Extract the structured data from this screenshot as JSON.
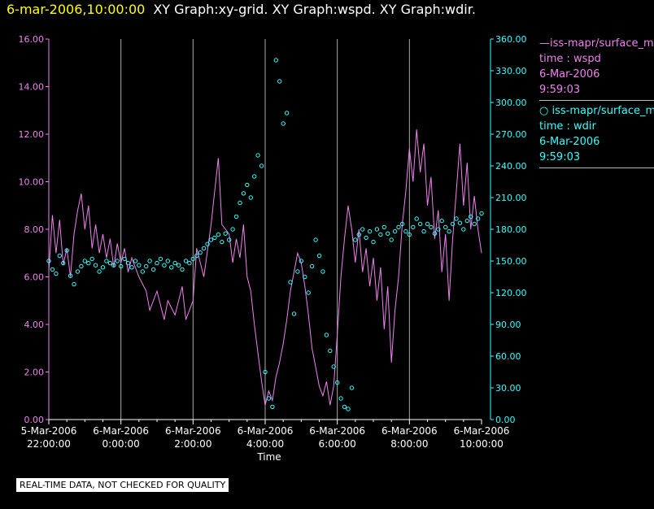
{
  "header": {
    "datetime": "6-mar-2006,10:00:00",
    "title": "XY Graph:xy-grid.  XY Graph:wspd.  XY Graph:wdir."
  },
  "legend": {
    "entries": [
      {
        "line1": "—iss-mapr/surface_m",
        "line2": "time : wspd",
        "line3": "6-Mar-2006",
        "line4": "9:59:03",
        "color": "#ee82ee"
      },
      {
        "line1": "○  iss-mapr/surface_m",
        "line2": "time : wdir",
        "line3": "6-Mar-2006",
        "line4": "9:59:03",
        "color": "#33ffff"
      }
    ]
  },
  "badge": "REAL-TIME DATA, NOT CHECKED FOR QUALITY",
  "chart_data": {
    "type": "line",
    "xlabel": "Time",
    "x_ticks": [
      {
        "l1": "5-Mar-2006",
        "l2": "22:00:00",
        "h": 0
      },
      {
        "l1": "6-Mar-2006",
        "l2": "0:00:00",
        "h": 2
      },
      {
        "l1": "6-Mar-2006",
        "l2": "2:00:00",
        "h": 4
      },
      {
        "l1": "6-Mar-2006",
        "l2": "4:00:00",
        "h": 6
      },
      {
        "l1": "6-Mar-2006",
        "l2": "6:00:00",
        "h": 8
      },
      {
        "l1": "6-Mar-2006",
        "l2": "8:00:00",
        "h": 10
      },
      {
        "l1": "6-Mar-2006",
        "l2": "10:00:00",
        "h": 12
      }
    ],
    "x_range_hours": [
      0,
      12
    ],
    "y_left": {
      "ticks": [
        "0.00",
        "2.00",
        "4.00",
        "6.00",
        "8.00",
        "10.00",
        "12.00",
        "14.00",
        "16.00"
      ],
      "range": [
        0,
        16
      ],
      "color": "#ee82ee"
    },
    "y_right": {
      "ticks": [
        "0.00",
        "30.00",
        "60.00",
        "90.00",
        "120.00",
        "150.00",
        "180.00",
        "210.00",
        "240.00",
        "270.00",
        "300.00",
        "330.00",
        "360.00"
      ],
      "range": [
        0,
        360
      ],
      "color": "#33ffff"
    },
    "vertical_grid": true,
    "series": [
      {
        "kind": "line",
        "color": "#ee82ee",
        "points": [
          [
            0,
            6.2
          ],
          [
            0.1,
            8.6
          ],
          [
            0.2,
            7.0
          ],
          [
            0.3,
            8.4
          ],
          [
            0.4,
            6.5
          ],
          [
            0.5,
            7.2
          ],
          [
            0.6,
            6.0
          ],
          [
            0.7,
            7.8
          ],
          [
            0.8,
            8.8
          ],
          [
            0.9,
            9.5
          ],
          [
            1.0,
            8.0
          ],
          [
            1.1,
            9.0
          ],
          [
            1.2,
            7.2
          ],
          [
            1.3,
            8.2
          ],
          [
            1.4,
            7.0
          ],
          [
            1.5,
            7.8
          ],
          [
            1.6,
            6.8
          ],
          [
            1.7,
            7.6
          ],
          [
            1.8,
            6.4
          ],
          [
            1.9,
            7.4
          ],
          [
            2.0,
            6.6
          ],
          [
            2.1,
            7.2
          ],
          [
            2.2,
            6.2
          ],
          [
            2.3,
            6.8
          ],
          [
            2.5,
            6.0
          ],
          [
            2.7,
            5.4
          ],
          [
            2.8,
            4.6
          ],
          [
            3.0,
            5.4
          ],
          [
            3.2,
            4.2
          ],
          [
            3.3,
            5.0
          ],
          [
            3.5,
            4.4
          ],
          [
            3.7,
            5.6
          ],
          [
            3.8,
            4.2
          ],
          [
            4.0,
            5.0
          ],
          [
            4.1,
            7.2
          ],
          [
            4.3,
            6.0
          ],
          [
            4.5,
            8.2
          ],
          [
            4.6,
            9.6
          ],
          [
            4.7,
            11.0
          ],
          [
            4.8,
            8.2
          ],
          [
            5.0,
            7.8
          ],
          [
            5.1,
            6.6
          ],
          [
            5.2,
            7.6
          ],
          [
            5.3,
            6.8
          ],
          [
            5.4,
            8.2
          ],
          [
            5.5,
            6.0
          ],
          [
            5.6,
            5.4
          ],
          [
            5.7,
            4.0
          ],
          [
            5.8,
            2.8
          ],
          [
            5.9,
            1.6
          ],
          [
            6.0,
            0.6
          ],
          [
            6.1,
            1.2
          ],
          [
            6.2,
            0.8
          ],
          [
            6.3,
            1.8
          ],
          [
            6.4,
            2.4
          ],
          [
            6.5,
            3.2
          ],
          [
            6.6,
            4.2
          ],
          [
            6.7,
            5.4
          ],
          [
            6.8,
            6.2
          ],
          [
            6.9,
            7.0
          ],
          [
            7.0,
            6.6
          ],
          [
            7.1,
            5.6
          ],
          [
            7.2,
            4.4
          ],
          [
            7.3,
            3.0
          ],
          [
            7.4,
            2.2
          ],
          [
            7.5,
            1.4
          ],
          [
            7.6,
            1.0
          ],
          [
            7.7,
            1.6
          ],
          [
            7.8,
            0.6
          ],
          [
            7.9,
            1.4
          ],
          [
            8.0,
            3.6
          ],
          [
            8.1,
            6.0
          ],
          [
            8.2,
            7.6
          ],
          [
            8.3,
            9.0
          ],
          [
            8.4,
            8.0
          ],
          [
            8.5,
            6.6
          ],
          [
            8.6,
            8.0
          ],
          [
            8.7,
            6.2
          ],
          [
            8.8,
            7.2
          ],
          [
            8.9,
            5.6
          ],
          [
            9.0,
            6.8
          ],
          [
            9.1,
            5.0
          ],
          [
            9.2,
            6.4
          ],
          [
            9.3,
            3.8
          ],
          [
            9.4,
            5.6
          ],
          [
            9.5,
            2.4
          ],
          [
            9.6,
            4.6
          ],
          [
            9.7,
            6.0
          ],
          [
            9.8,
            8.2
          ],
          [
            9.9,
            9.6
          ],
          [
            10.0,
            11.4
          ],
          [
            10.1,
            10.0
          ],
          [
            10.2,
            12.2
          ],
          [
            10.3,
            10.4
          ],
          [
            10.4,
            11.6
          ],
          [
            10.5,
            9.0
          ],
          [
            10.6,
            10.2
          ],
          [
            10.7,
            7.6
          ],
          [
            10.8,
            8.8
          ],
          [
            10.9,
            6.2
          ],
          [
            11.0,
            7.8
          ],
          [
            11.1,
            5.0
          ],
          [
            11.2,
            7.6
          ],
          [
            11.3,
            9.6
          ],
          [
            11.4,
            11.6
          ],
          [
            11.5,
            9.0
          ],
          [
            11.6,
            10.8
          ],
          [
            11.7,
            8.0
          ],
          [
            11.8,
            9.4
          ],
          [
            11.9,
            8.0
          ],
          [
            12.0,
            7.0
          ]
        ]
      },
      {
        "kind": "scatter",
        "color": "#33ffff",
        "points": [
          [
            0.0,
            150
          ],
          [
            0.1,
            142
          ],
          [
            0.2,
            138
          ],
          [
            0.3,
            155
          ],
          [
            0.4,
            148
          ],
          [
            0.5,
            160
          ],
          [
            0.6,
            136
          ],
          [
            0.7,
            128
          ],
          [
            0.8,
            140
          ],
          [
            0.9,
            145
          ],
          [
            1.0,
            150
          ],
          [
            1.1,
            148
          ],
          [
            1.2,
            152
          ],
          [
            1.3,
            146
          ],
          [
            1.4,
            140
          ],
          [
            1.5,
            144
          ],
          [
            1.6,
            150
          ],
          [
            1.7,
            148
          ],
          [
            1.8,
            146
          ],
          [
            1.9,
            150
          ],
          [
            2.0,
            145
          ],
          [
            2.1,
            152
          ],
          [
            2.2,
            148
          ],
          [
            2.3,
            144
          ],
          [
            2.4,
            150
          ],
          [
            2.5,
            146
          ],
          [
            2.6,
            140
          ],
          [
            2.7,
            145
          ],
          [
            2.8,
            150
          ],
          [
            2.9,
            142
          ],
          [
            3.0,
            148
          ],
          [
            3.1,
            152
          ],
          [
            3.2,
            146
          ],
          [
            3.3,
            150
          ],
          [
            3.4,
            144
          ],
          [
            3.5,
            148
          ],
          [
            3.6,
            146
          ],
          [
            3.7,
            142
          ],
          [
            3.8,
            150
          ],
          [
            3.9,
            148
          ],
          [
            4.0,
            152
          ],
          [
            4.1,
            155
          ],
          [
            4.2,
            158
          ],
          [
            4.3,
            162
          ],
          [
            4.4,
            166
          ],
          [
            4.5,
            170
          ],
          [
            4.6,
            172
          ],
          [
            4.7,
            175
          ],
          [
            4.8,
            168
          ],
          [
            4.9,
            176
          ],
          [
            5.0,
            170
          ],
          [
            5.1,
            180
          ],
          [
            5.2,
            192
          ],
          [
            5.3,
            205
          ],
          [
            5.4,
            214
          ],
          [
            5.5,
            222
          ],
          [
            5.6,
            210
          ],
          [
            5.7,
            230
          ],
          [
            5.8,
            250
          ],
          [
            5.9,
            240
          ],
          [
            6.0,
            45
          ],
          [
            6.1,
            20
          ],
          [
            6.2,
            12
          ],
          [
            6.3,
            340
          ],
          [
            6.4,
            320
          ],
          [
            6.5,
            280
          ],
          [
            6.6,
            290
          ],
          [
            6.7,
            130
          ],
          [
            6.8,
            100
          ],
          [
            6.9,
            140
          ],
          [
            7.0,
            150
          ],
          [
            7.1,
            135
          ],
          [
            7.2,
            120
          ],
          [
            7.3,
            145
          ],
          [
            7.4,
            170
          ],
          [
            7.5,
            155
          ],
          [
            7.6,
            140
          ],
          [
            7.7,
            80
          ],
          [
            7.8,
            65
          ],
          [
            7.9,
            50
          ],
          [
            8.0,
            35
          ],
          [
            8.1,
            20
          ],
          [
            8.2,
            12
          ],
          [
            8.3,
            10
          ],
          [
            8.4,
            30
          ],
          [
            8.5,
            170
          ],
          [
            8.6,
            175
          ],
          [
            8.7,
            180
          ],
          [
            8.8,
            172
          ],
          [
            8.9,
            178
          ],
          [
            9.0,
            168
          ],
          [
            9.1,
            180
          ],
          [
            9.2,
            175
          ],
          [
            9.3,
            182
          ],
          [
            9.4,
            176
          ],
          [
            9.5,
            170
          ],
          [
            9.6,
            178
          ],
          [
            9.7,
            182
          ],
          [
            9.8,
            185
          ],
          [
            9.9,
            178
          ],
          [
            10.0,
            175
          ],
          [
            10.1,
            182
          ],
          [
            10.2,
            190
          ],
          [
            10.3,
            185
          ],
          [
            10.4,
            178
          ],
          [
            10.5,
            185
          ],
          [
            10.6,
            182
          ],
          [
            10.7,
            176
          ],
          [
            10.8,
            180
          ],
          [
            10.9,
            188
          ],
          [
            11.0,
            182
          ],
          [
            11.1,
            178
          ],
          [
            11.2,
            185
          ],
          [
            11.3,
            190
          ],
          [
            11.4,
            186
          ],
          [
            11.5,
            180
          ],
          [
            11.6,
            188
          ],
          [
            11.7,
            192
          ],
          [
            11.8,
            185
          ],
          [
            11.9,
            190
          ],
          [
            12.0,
            195
          ]
        ]
      }
    ]
  }
}
